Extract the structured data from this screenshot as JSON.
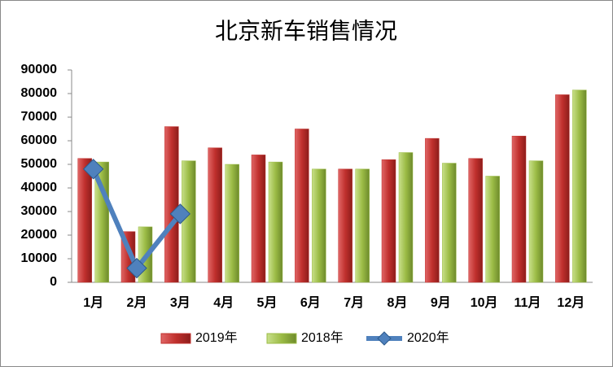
{
  "chart_data": {
    "type": "bar_line",
    "title": "北京新车销售情况",
    "categories": [
      "1月",
      "2月",
      "3月",
      "4月",
      "5月",
      "6月",
      "7月",
      "8月",
      "9月",
      "10月",
      "11月",
      "12月"
    ],
    "series": [
      {
        "name": "2019年",
        "type": "bar",
        "color": "#c0302d",
        "values": [
          52500,
          21500,
          66000,
          57000,
          54000,
          65000,
          48000,
          52000,
          61000,
          52500,
          62000,
          79500
        ]
      },
      {
        "name": "2018年",
        "type": "bar",
        "color": "#9bbb45",
        "values": [
          51000,
          23500,
          51500,
          50000,
          51000,
          48000,
          48000,
          55000,
          50500,
          45000,
          51500,
          81500
        ]
      },
      {
        "name": "2020年",
        "type": "line",
        "color": "#4f81bd",
        "values": [
          48000,
          6000,
          29000,
          null,
          null,
          null,
          null,
          null,
          null,
          null,
          null,
          null
        ]
      }
    ],
    "ylim": [
      0,
      90000
    ],
    "yticks": [
      0,
      10000,
      20000,
      30000,
      40000,
      50000,
      60000,
      70000,
      80000,
      90000
    ],
    "grid": false
  }
}
